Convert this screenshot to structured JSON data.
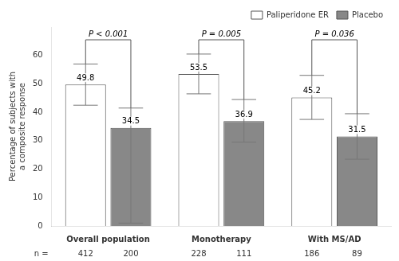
{
  "chart_data": {
    "type": "bar",
    "categories": [
      "Overall population",
      "Monotherapy",
      "With MS/AD"
    ],
    "series": [
      {
        "name": "Paliperidone ER",
        "color": "#ffffff",
        "values": [
          49.8,
          53.5,
          45.2
        ],
        "ci_lower": [
          42.5,
          46.5,
          37.5
        ],
        "ci_upper": [
          57.0,
          60.5,
          53.0
        ],
        "n": [
          412,
          228,
          186
        ]
      },
      {
        "name": "Placebo",
        "color": "#888888",
        "values": [
          34.5,
          36.9,
          31.5
        ],
        "ci_lower": [
          1.0,
          29.5,
          23.5
        ],
        "ci_upper": [
          41.5,
          44.5,
          39.5
        ],
        "n": [
          200,
          111,
          89
        ]
      }
    ],
    "p_values": [
      "P < 0.001",
      "P = 0.005",
      "P = 0.036"
    ],
    "n_label": "n =",
    "ylabel": "Percentage of subjects with\na composite response",
    "ylim": [
      0,
      70
    ],
    "yticks": [
      0,
      10,
      20,
      30,
      40,
      50,
      60
    ],
    "data_labels": true,
    "legend": "upper right",
    "grid": false
  }
}
